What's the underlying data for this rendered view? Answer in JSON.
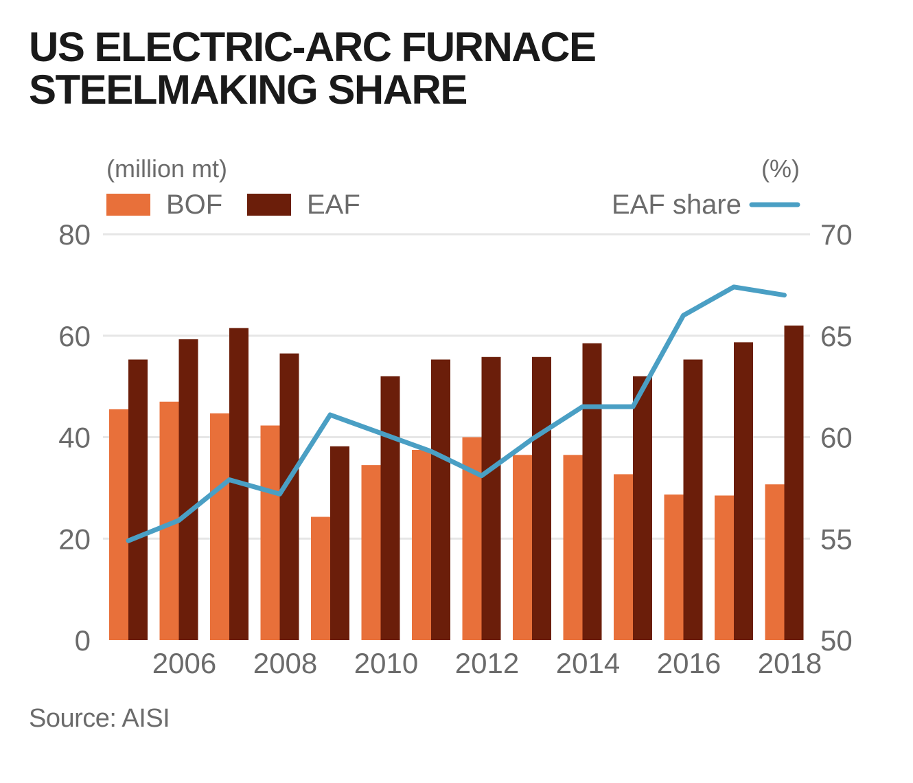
{
  "title_line1": "US ELECTRIC-ARC FURNACE",
  "title_line2": "STEELMAKING SHARE",
  "source": "Source: AISI",
  "left_unit": "(million mt)",
  "right_unit": "(%)",
  "colors": {
    "bof": "#e8703a",
    "eaf": "#6b1e0a",
    "share": "#4a9fc4",
    "grid": "#e6e6e6"
  },
  "chart_data": {
    "type": "bar",
    "title": "US ELECTRIC-ARC FURNACE STEELMAKING SHARE",
    "categories": [
      2005,
      2006,
      2007,
      2008,
      2009,
      2010,
      2011,
      2012,
      2013,
      2014,
      2015,
      2016,
      2017,
      2018
    ],
    "series": [
      {
        "name": "BOF",
        "values": [
          45.5,
          47,
          44.7,
          42.3,
          24.3,
          34.5,
          37.5,
          40,
          36.5,
          36.5,
          32.7,
          28.7,
          28.5,
          30.7
        ]
      },
      {
        "name": "EAF",
        "values": [
          55.3,
          59.3,
          61.5,
          56.5,
          38.2,
          52,
          55.3,
          55.8,
          55.8,
          58.5,
          52,
          55.3,
          58.7,
          62
        ]
      }
    ],
    "line_series": {
      "name": "EAF share",
      "axis": "right",
      "values": [
        54.9,
        55.9,
        57.9,
        57.2,
        61.1,
        60.2,
        59.3,
        58.1,
        59.9,
        61.5,
        61.5,
        66,
        67.4,
        67
      ]
    },
    "xticks": [
      "2006",
      "2008",
      "2010",
      "2012",
      "2014",
      "2016",
      "2018"
    ],
    "left_axis": {
      "label": "(million mt)",
      "ylim": [
        0,
        80
      ],
      "ticks": [
        0,
        20,
        40,
        60,
        80
      ]
    },
    "right_axis": {
      "label": "(%)",
      "ylim": [
        50,
        70
      ],
      "ticks": [
        50,
        55,
        60,
        65,
        70
      ]
    },
    "legend": [
      "BOF",
      "EAF",
      "EAF share"
    ]
  }
}
